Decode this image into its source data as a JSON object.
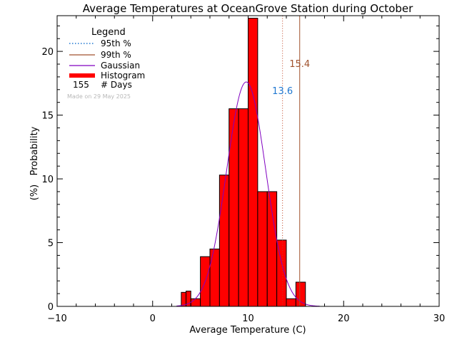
{
  "chart_data": {
    "type": "bar",
    "title": "Average Temperatures at OceanGrove Station during October",
    "xlabel": "Average Temperature (C)",
    "ylabel_line1": "Probability",
    "ylabel_line2": "(%)",
    "xlim": [
      -10,
      30
    ],
    "ylim": [
      0,
      22.8
    ],
    "xticks": [
      -10,
      0,
      10,
      20,
      30
    ],
    "yticks": [
      0,
      5,
      10,
      15,
      20
    ],
    "grid": false,
    "legend_position": "top-left",
    "legend": {
      "title": "Legend",
      "items": [
        {
          "label": "95th %",
          "style": "dotted",
          "color": "#1f77d0"
        },
        {
          "label": "99th %",
          "style": "solid",
          "color": "#a0522d"
        },
        {
          "label": "Gaussian",
          "style": "solid",
          "color": "#8000c0"
        },
        {
          "label": "Histogram",
          "style": "thick",
          "color": "#ff0000"
        }
      ],
      "count_value": "155",
      "count_label": "# Days"
    },
    "watermark": "Made on 29 May 2025",
    "histogram": {
      "bin_edges": [
        3,
        3.5,
        4,
        5,
        6,
        7,
        8,
        9,
        10,
        11,
        12,
        13,
        14,
        15,
        16
      ],
      "values": [
        1.1,
        1.2,
        0.6,
        3.9,
        4.5,
        10.3,
        15.5,
        15.5,
        22.6,
        9.0,
        9.0,
        5.2,
        0.6,
        1.9
      ],
      "color": "#ff0000"
    },
    "gaussian": {
      "mean": 9.8,
      "sd": 2.05,
      "peak": 17.6,
      "x_range": [
        2.5,
        17.5
      ],
      "color": "#8000c0"
    },
    "percentile_lines": [
      {
        "name": "95th %",
        "x": 13.6,
        "label": "13.6",
        "color": "#1f77d0",
        "line_color": "#c04020",
        "style": "dotted"
      },
      {
        "name": "99th %",
        "x": 15.4,
        "label": "15.4",
        "color": "#a0522d",
        "line_color": "#a0522d",
        "style": "solid"
      }
    ]
  }
}
